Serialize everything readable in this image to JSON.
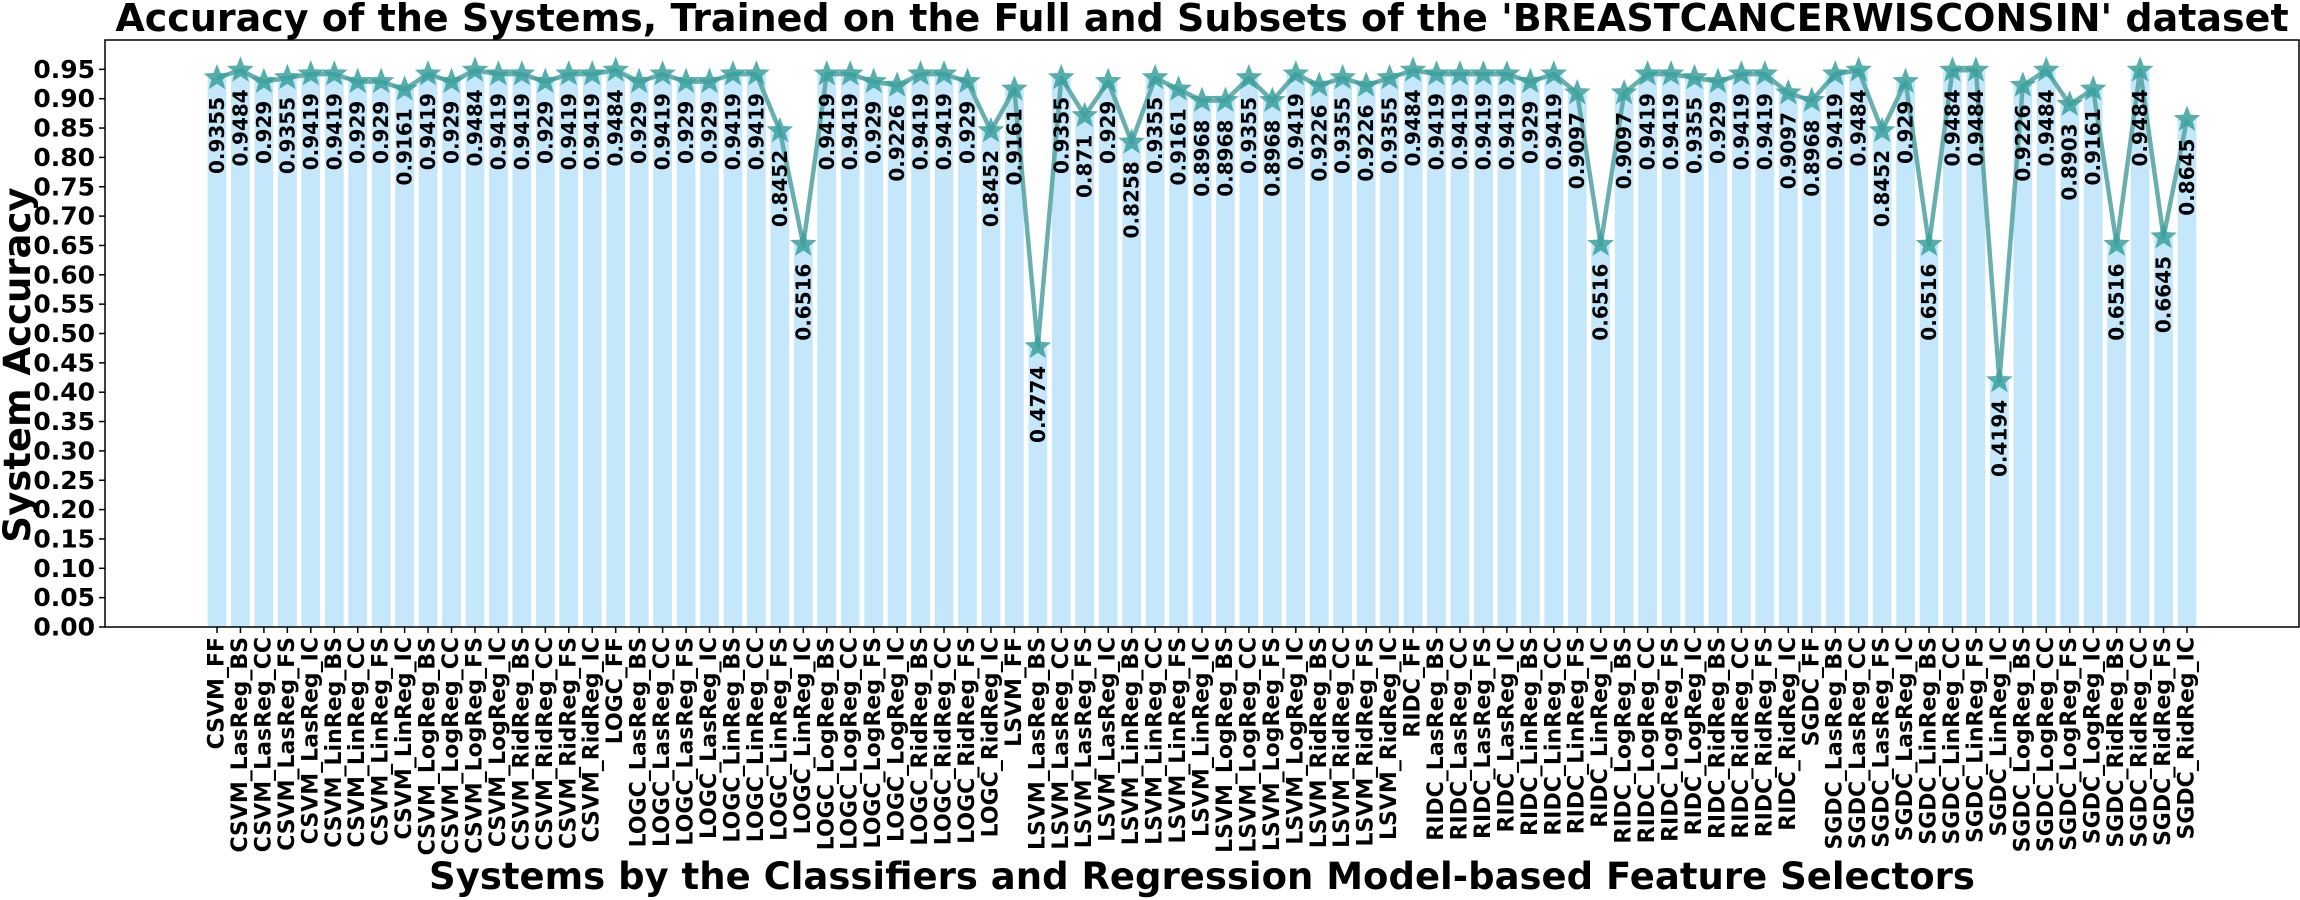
{
  "chart_data": {
    "type": "bar",
    "title": "Accuracy of the Systems, Trained on the Full and Subsets of the 'BREASTCANCERWISCONSIN' dataset",
    "xlabel": "Systems by the Classifiers and Regression Model-based Feature Selectors",
    "ylabel": "System Accuracy",
    "ylim": [
      0,
      1.0
    ],
    "yticks": [
      0.0,
      0.05,
      0.1,
      0.15,
      0.2,
      0.25,
      0.3,
      0.35,
      0.4,
      0.45,
      0.5,
      0.55,
      0.6,
      0.65,
      0.7,
      0.75,
      0.8,
      0.85,
      0.9,
      0.95
    ],
    "ytick_labels": [
      "0.00",
      "0.05",
      "0.10",
      "0.15",
      "0.20",
      "0.25",
      "0.30",
      "0.35",
      "0.40",
      "0.45",
      "0.50",
      "0.55",
      "0.60",
      "0.65",
      "0.70",
      "0.75",
      "0.80",
      "0.85",
      "0.90",
      "0.95"
    ],
    "grid": false,
    "bar_color": "#c4e7fb",
    "line_color": "#5aa6a6",
    "marker_color": "#3aa09c",
    "marker": "star",
    "categories": [
      "CSVM_FF",
      "CSVM_LasReg_BS",
      "CSVM_LasReg_CC",
      "CSVM_LasReg_FS",
      "CSVM_LasReg_IC",
      "CSVM_LinReg_BS",
      "CSVM_LinReg_CC",
      "CSVM_LinReg_FS",
      "CSVM_LinReg_IC",
      "CSVM_LogReg_BS",
      "CSVM_LogReg_CC",
      "CSVM_LogReg_FS",
      "CSVM_LogReg_IC",
      "CSVM_RidReg_BS",
      "CSVM_RidReg_CC",
      "CSVM_RidReg_FS",
      "CSVM_RidReg_IC",
      "LOGC_FF",
      "LOGC_LasReg_BS",
      "LOGC_LasReg_CC",
      "LOGC_LasReg_FS",
      "LOGC_LasReg_IC",
      "LOGC_LinReg_BS",
      "LOGC_LinReg_CC",
      "LOGC_LinReg_FS",
      "LOGC_LinReg_IC",
      "LOGC_LogReg_BS",
      "LOGC_LogReg_CC",
      "LOGC_LogReg_FS",
      "LOGC_LogReg_IC",
      "LOGC_RidReg_BS",
      "LOGC_RidReg_CC",
      "LOGC_RidReg_FS",
      "LOGC_RidReg_IC",
      "LSVM_FF",
      "LSVM_LasReg_BS",
      "LSVM_LasReg_CC",
      "LSVM_LasReg_FS",
      "LSVM_LasReg_IC",
      "LSVM_LinReg_BS",
      "LSVM_LinReg_CC",
      "LSVM_LinReg_FS",
      "LSVM_LinReg_IC",
      "LSVM_LogReg_BS",
      "LSVM_LogReg_CC",
      "LSVM_LogReg_FS",
      "LSVM_LogReg_IC",
      "LSVM_RidReg_BS",
      "LSVM_RidReg_CC",
      "LSVM_RidReg_FS",
      "LSVM_RidReg_IC",
      "RIDC_FF",
      "RIDC_LasReg_BS",
      "RIDC_LasReg_CC",
      "RIDC_LasReg_FS",
      "RIDC_LasReg_IC",
      "RIDC_LinReg_BS",
      "RIDC_LinReg_CC",
      "RIDC_LinReg_FS",
      "RIDC_LinReg_IC",
      "RIDC_LogReg_BS",
      "RIDC_LogReg_CC",
      "RIDC_LogReg_FS",
      "RIDC_LogReg_IC",
      "RIDC_RidReg_BS",
      "RIDC_RidReg_CC",
      "RIDC_RidReg_FS",
      "RIDC_RidReg_IC",
      "SGDC_FF",
      "SGDC_LasReg_BS",
      "SGDC_LasReg_CC",
      "SGDC_LasReg_FS",
      "SGDC_LasReg_IC",
      "SGDC_LinReg_BS",
      "SGDC_LinReg_CC",
      "SGDC_LinReg_FS",
      "SGDC_LinReg_IC",
      "SGDC_LogReg_BS",
      "SGDC_LogReg_CC",
      "SGDC_LogReg_FS",
      "SGDC_LogReg_IC",
      "SGDC_RidReg_BS",
      "SGDC_RidReg_CC",
      "SGDC_RidReg_FS",
      "SGDC_RidReg_IC"
    ],
    "values": [
      0.9355,
      0.9484,
      0.929,
      0.9355,
      0.9419,
      0.9419,
      0.929,
      0.929,
      0.9161,
      0.9419,
      0.929,
      0.9484,
      0.9419,
      0.9419,
      0.929,
      0.9419,
      0.9419,
      0.9484,
      0.929,
      0.9419,
      0.929,
      0.929,
      0.9419,
      0.9419,
      0.8452,
      0.6516,
      0.9419,
      0.9419,
      0.929,
      0.9226,
      0.9419,
      0.9419,
      0.929,
      0.8452,
      0.9161,
      0.4774,
      0.9355,
      0.871,
      0.929,
      0.8258,
      0.9355,
      0.9161,
      0.8968,
      0.8968,
      0.9355,
      0.8968,
      0.9419,
      0.9226,
      0.9355,
      0.9226,
      0.9355,
      0.9484,
      0.9419,
      0.9419,
      0.9419,
      0.9419,
      0.929,
      0.9419,
      0.9097,
      0.6516,
      0.9097,
      0.9419,
      0.9419,
      0.9355,
      0.929,
      0.9419,
      0.9419,
      0.9097,
      0.8968,
      0.9419,
      0.9484,
      0.8452,
      0.929,
      0.6516,
      0.9484,
      0.9484,
      0.4194,
      0.9226,
      0.9484,
      0.8903,
      0.9161,
      0.6516,
      0.9484,
      0.6645,
      0.8645
    ],
    "data_labels": [
      "0.9355",
      "0.9484",
      "0.929",
      "0.9355",
      "0.9419",
      "0.9419",
      "0.929",
      "0.929",
      "0.9161",
      "0.9419",
      "0.929",
      "0.9484",
      "0.9419",
      "0.9419",
      "0.929",
      "0.9419",
      "0.9419",
      "0.9484",
      "0.929",
      "0.9419",
      "0.929",
      "0.929",
      "0.9419",
      "0.9419",
      "0.8452",
      "0.6516",
      "0.9419",
      "0.9419",
      "0.929",
      "0.9226",
      "0.9419",
      "0.9419",
      "0.929",
      "0.8452",
      "0.9161",
      "0.4774",
      "0.9355",
      "0.871",
      "0.929",
      "0.8258",
      "0.9355",
      "0.9161",
      "0.8968",
      "0.8968",
      "0.9355",
      "0.8968",
      "0.9419",
      "0.9226",
      "0.9355",
      "0.9226",
      "0.9355",
      "0.9484",
      "0.9419",
      "0.9419",
      "0.9419",
      "0.9419",
      "0.929",
      "0.9419",
      "0.9097",
      "0.6516",
      "0.9097",
      "0.9419",
      "0.9419",
      "0.9355",
      "0.929",
      "0.9419",
      "0.9419",
      "0.9097",
      "0.8968",
      "0.9419",
      "0.9484",
      "0.8452",
      "0.929",
      "0.6516",
      "0.9484",
      "0.9484",
      "0.4194",
      "0.9226",
      "0.9484",
      "0.8903",
      "0.9161",
      "0.6516",
      "0.9484",
      "0.6645",
      "0.8645"
    ]
  }
}
